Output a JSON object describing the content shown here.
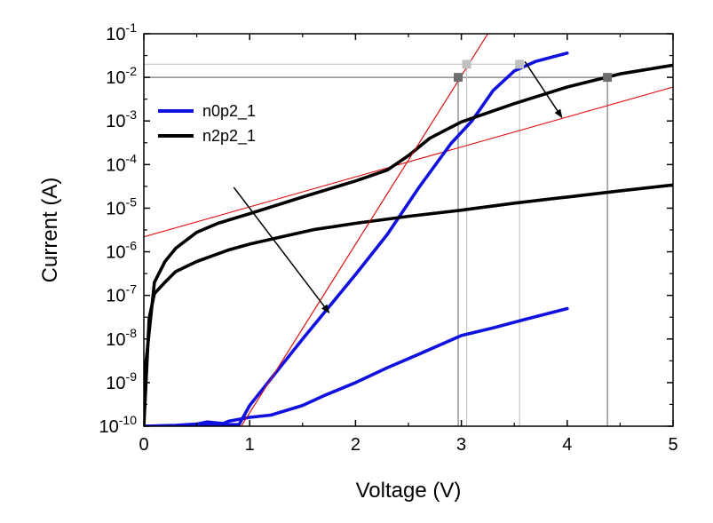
{
  "chart_data": {
    "type": "line",
    "xlabel": "Voltage (V)",
    "ylabel": "Current (A)",
    "xlim": [
      0,
      5
    ],
    "ylim": [
      1e-10,
      0.1
    ],
    "yscale": "log",
    "x_ticks": [
      "0",
      "1",
      "2",
      "3",
      "4",
      "5"
    ],
    "y_ticks": [
      {
        "base": "10",
        "exp": "-10"
      },
      {
        "base": "10",
        "exp": "-9"
      },
      {
        "base": "10",
        "exp": "-8"
      },
      {
        "base": "10",
        "exp": "-7"
      },
      {
        "base": "10",
        "exp": "-6"
      },
      {
        "base": "10",
        "exp": "-5"
      },
      {
        "base": "10",
        "exp": "-4"
      },
      {
        "base": "10",
        "exp": "-3"
      },
      {
        "base": "10",
        "exp": "-2"
      },
      {
        "base": "10",
        "exp": "-1"
      }
    ],
    "grid": false,
    "legend_position": "top-left",
    "series": [
      {
        "name": "n0p2_1",
        "color": "#1010e0",
        "curves": [
          [
            [
              0.0,
              1e-10
            ],
            [
              0.3,
              1.05e-10
            ],
            [
              0.5,
              1.12e-10
            ],
            [
              0.6,
              1.25e-10
            ],
            [
              0.75,
              1.15e-10
            ],
            [
              0.8,
              1.3e-10
            ],
            [
              1.0,
              1.6e-10
            ],
            [
              1.2,
              1.8e-10
            ],
            [
              1.5,
              3e-10
            ],
            [
              1.7,
              5e-10
            ],
            [
              2.0,
              1e-09
            ],
            [
              2.3,
              2.2e-09
            ],
            [
              2.6,
              4.5e-09
            ],
            [
              3.0,
              1.2e-08
            ],
            [
              3.3,
              1.8e-08
            ],
            [
              3.6,
              2.8e-08
            ],
            [
              4.0,
              5e-08
            ]
          ],
          [
            [
              0.0,
              1e-10
            ],
            [
              0.9,
              1.1e-10
            ],
            [
              1.0,
              3e-10
            ],
            [
              1.5,
              1e-08
            ],
            [
              2.0,
              3e-07
            ],
            [
              2.3,
              2.5e-06
            ],
            [
              2.6,
              3e-05
            ],
            [
              2.9,
              0.0003
            ],
            [
              3.1,
              0.001
            ],
            [
              3.3,
              0.005
            ],
            [
              3.5,
              0.014
            ],
            [
              3.7,
              0.023
            ],
            [
              4.0,
              0.036
            ]
          ]
        ]
      },
      {
        "name": "n2p2_1",
        "color": "#000000",
        "curves": [
          [
            [
              0.0,
              1e-10
            ],
            [
              0.05,
              3e-08
            ],
            [
              0.1,
              1.1e-07
            ],
            [
              0.2,
              2e-07
            ],
            [
              0.3,
              3.5e-07
            ],
            [
              0.5,
              6e-07
            ],
            [
              0.8,
              1.1e-06
            ],
            [
              1.0,
              1.5e-06
            ],
            [
              1.3,
              2.2e-06
            ],
            [
              1.6,
              3.2e-06
            ],
            [
              2.0,
              4.5e-06
            ],
            [
              2.5,
              6.5e-06
            ],
            [
              3.0,
              9e-06
            ],
            [
              3.5,
              1.3e-05
            ],
            [
              4.0,
              1.8e-05
            ],
            [
              4.5,
              2.5e-05
            ],
            [
              5.0,
              3.4e-05
            ]
          ],
          [
            [
              0.0,
              1e-09
            ],
            [
              0.1,
              2e-07
            ],
            [
              0.2,
              6e-07
            ],
            [
              0.3,
              1.2e-06
            ],
            [
              0.5,
              2.8e-06
            ],
            [
              0.7,
              4.5e-06
            ],
            [
              1.0,
              7.5e-06
            ],
            [
              1.5,
              1.8e-05
            ],
            [
              2.0,
              4.2e-05
            ],
            [
              2.3,
              7.5e-05
            ],
            [
              2.5,
              0.00016
            ],
            [
              2.7,
              0.0004
            ],
            [
              3.0,
              0.00095
            ],
            [
              3.5,
              0.0025
            ],
            [
              4.0,
              0.006
            ],
            [
              4.5,
              0.012
            ],
            [
              5.0,
              0.019
            ]
          ]
        ]
      }
    ],
    "fit_lines": [
      {
        "color": "#e01010",
        "points": [
          [
            0.92,
            1e-10
          ],
          [
            3.25,
            0.1
          ]
        ]
      },
      {
        "color": "#e01010",
        "points": [
          [
            0.0,
            2.2e-06
          ],
          [
            5.0,
            0.006
          ]
        ]
      }
    ],
    "reference_lines": [
      {
        "color": "#7a7a7a",
        "kind": "h",
        "y": 0.01,
        "x_from": 0.0,
        "x_to": 4.38
      },
      {
        "color": "#7a7a7a",
        "kind": "v",
        "x": 2.97,
        "y_from": 1e-10,
        "y_to": 0.01
      },
      {
        "color": "#7a7a7a",
        "kind": "v",
        "x": 4.38,
        "y_from": 1e-10,
        "y_to": 0.01
      },
      {
        "color": "#c4c4c4",
        "kind": "h",
        "y": 0.02,
        "x_from": 0.0,
        "x_to": 3.55
      },
      {
        "color": "#c4c4c4",
        "kind": "v",
        "x": 3.05,
        "y_from": 1e-10,
        "y_to": 0.02
      },
      {
        "color": "#c4c4c4",
        "kind": "v",
        "x": 3.55,
        "y_from": 1e-10,
        "y_to": 0.02
      }
    ],
    "markers": [
      {
        "x": 2.97,
        "y": 0.01,
        "color": "#6e6e6e"
      },
      {
        "x": 4.38,
        "y": 0.01,
        "color": "#6e6e6e"
      },
      {
        "x": 3.05,
        "y": 0.02,
        "color": "#c0c0c0"
      },
      {
        "x": 3.55,
        "y": 0.02,
        "color": "#c0c0c0"
      }
    ],
    "arrows": [
      {
        "from": [
          0.85,
          3e-05
        ],
        "to": [
          1.75,
          4e-08
        ]
      },
      {
        "from": [
          3.6,
          0.023
        ],
        "to": [
          3.95,
          0.0012
        ]
      }
    ]
  }
}
